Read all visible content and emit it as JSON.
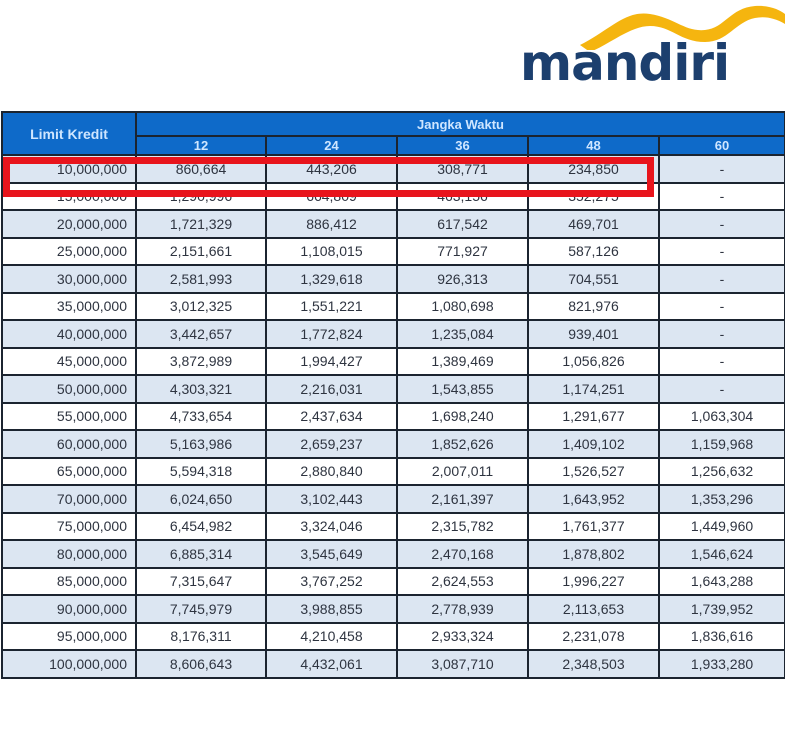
{
  "logo": {
    "text": "mandiri",
    "wave_color": "#f5b50f",
    "text_color": "#1c3f6e"
  },
  "table": {
    "header": {
      "limit_label": "Limit Kredit",
      "term_group_label": "Jangka Waktu",
      "terms": [
        "12",
        "24",
        "36",
        "48",
        "60"
      ]
    },
    "header_color": "#0e6ac9",
    "alt_row_color": "#dce6f2",
    "rows": [
      {
        "limit": "10,000,000",
        "values": [
          "860,664",
          "443,206",
          "308,771",
          "234,850",
          "-"
        ]
      },
      {
        "limit": "15,000,000",
        "values": [
          "1,290,996",
          "664,809",
          "463,156",
          "352,275",
          "-"
        ]
      },
      {
        "limit": "20,000,000",
        "values": [
          "1,721,329",
          "886,412",
          "617,542",
          "469,701",
          "-"
        ]
      },
      {
        "limit": "25,000,000",
        "values": [
          "2,151,661",
          "1,108,015",
          "771,927",
          "587,126",
          "-"
        ]
      },
      {
        "limit": "30,000,000",
        "values": [
          "2,581,993",
          "1,329,618",
          "926,313",
          "704,551",
          "-"
        ]
      },
      {
        "limit": "35,000,000",
        "values": [
          "3,012,325",
          "1,551,221",
          "1,080,698",
          "821,976",
          "-"
        ]
      },
      {
        "limit": "40,000,000",
        "values": [
          "3,442,657",
          "1,772,824",
          "1,235,084",
          "939,401",
          "-"
        ]
      },
      {
        "limit": "45,000,000",
        "values": [
          "3,872,989",
          "1,994,427",
          "1,389,469",
          "1,056,826",
          "-"
        ]
      },
      {
        "limit": "50,000,000",
        "values": [
          "4,303,321",
          "2,216,031",
          "1,543,855",
          "1,174,251",
          "-"
        ]
      },
      {
        "limit": "55,000,000",
        "values": [
          "4,733,654",
          "2,437,634",
          "1,698,240",
          "1,291,677",
          "1,063,304"
        ]
      },
      {
        "limit": "60,000,000",
        "values": [
          "5,163,986",
          "2,659,237",
          "1,852,626",
          "1,409,102",
          "1,159,968"
        ]
      },
      {
        "limit": "65,000,000",
        "values": [
          "5,594,318",
          "2,880,840",
          "2,007,011",
          "1,526,527",
          "1,256,632"
        ]
      },
      {
        "limit": "70,000,000",
        "values": [
          "6,024,650",
          "3,102,443",
          "2,161,397",
          "1,643,952",
          "1,353,296"
        ]
      },
      {
        "limit": "75,000,000",
        "values": [
          "6,454,982",
          "3,324,046",
          "2,315,782",
          "1,761,377",
          "1,449,960"
        ]
      },
      {
        "limit": "80,000,000",
        "values": [
          "6,885,314",
          "3,545,649",
          "2,470,168",
          "1,878,802",
          "1,546,624"
        ]
      },
      {
        "limit": "85,000,000",
        "values": [
          "7,315,647",
          "3,767,252",
          "2,624,553",
          "1,996,227",
          "1,643,288"
        ]
      },
      {
        "limit": "90,000,000",
        "values": [
          "7,745,979",
          "3,988,855",
          "2,778,939",
          "2,113,653",
          "1,739,952"
        ]
      },
      {
        "limit": "95,000,000",
        "values": [
          "8,176,311",
          "4,210,458",
          "2,933,324",
          "2,231,078",
          "1,836,616"
        ]
      },
      {
        "limit": "100,000,000",
        "values": [
          "8,606,643",
          "4,432,061",
          "3,087,710",
          "2,348,503",
          "1,933,280"
        ]
      }
    ]
  },
  "highlight": {
    "color": "#e8141c",
    "row_index": 0,
    "columns": "limit through 48"
  }
}
